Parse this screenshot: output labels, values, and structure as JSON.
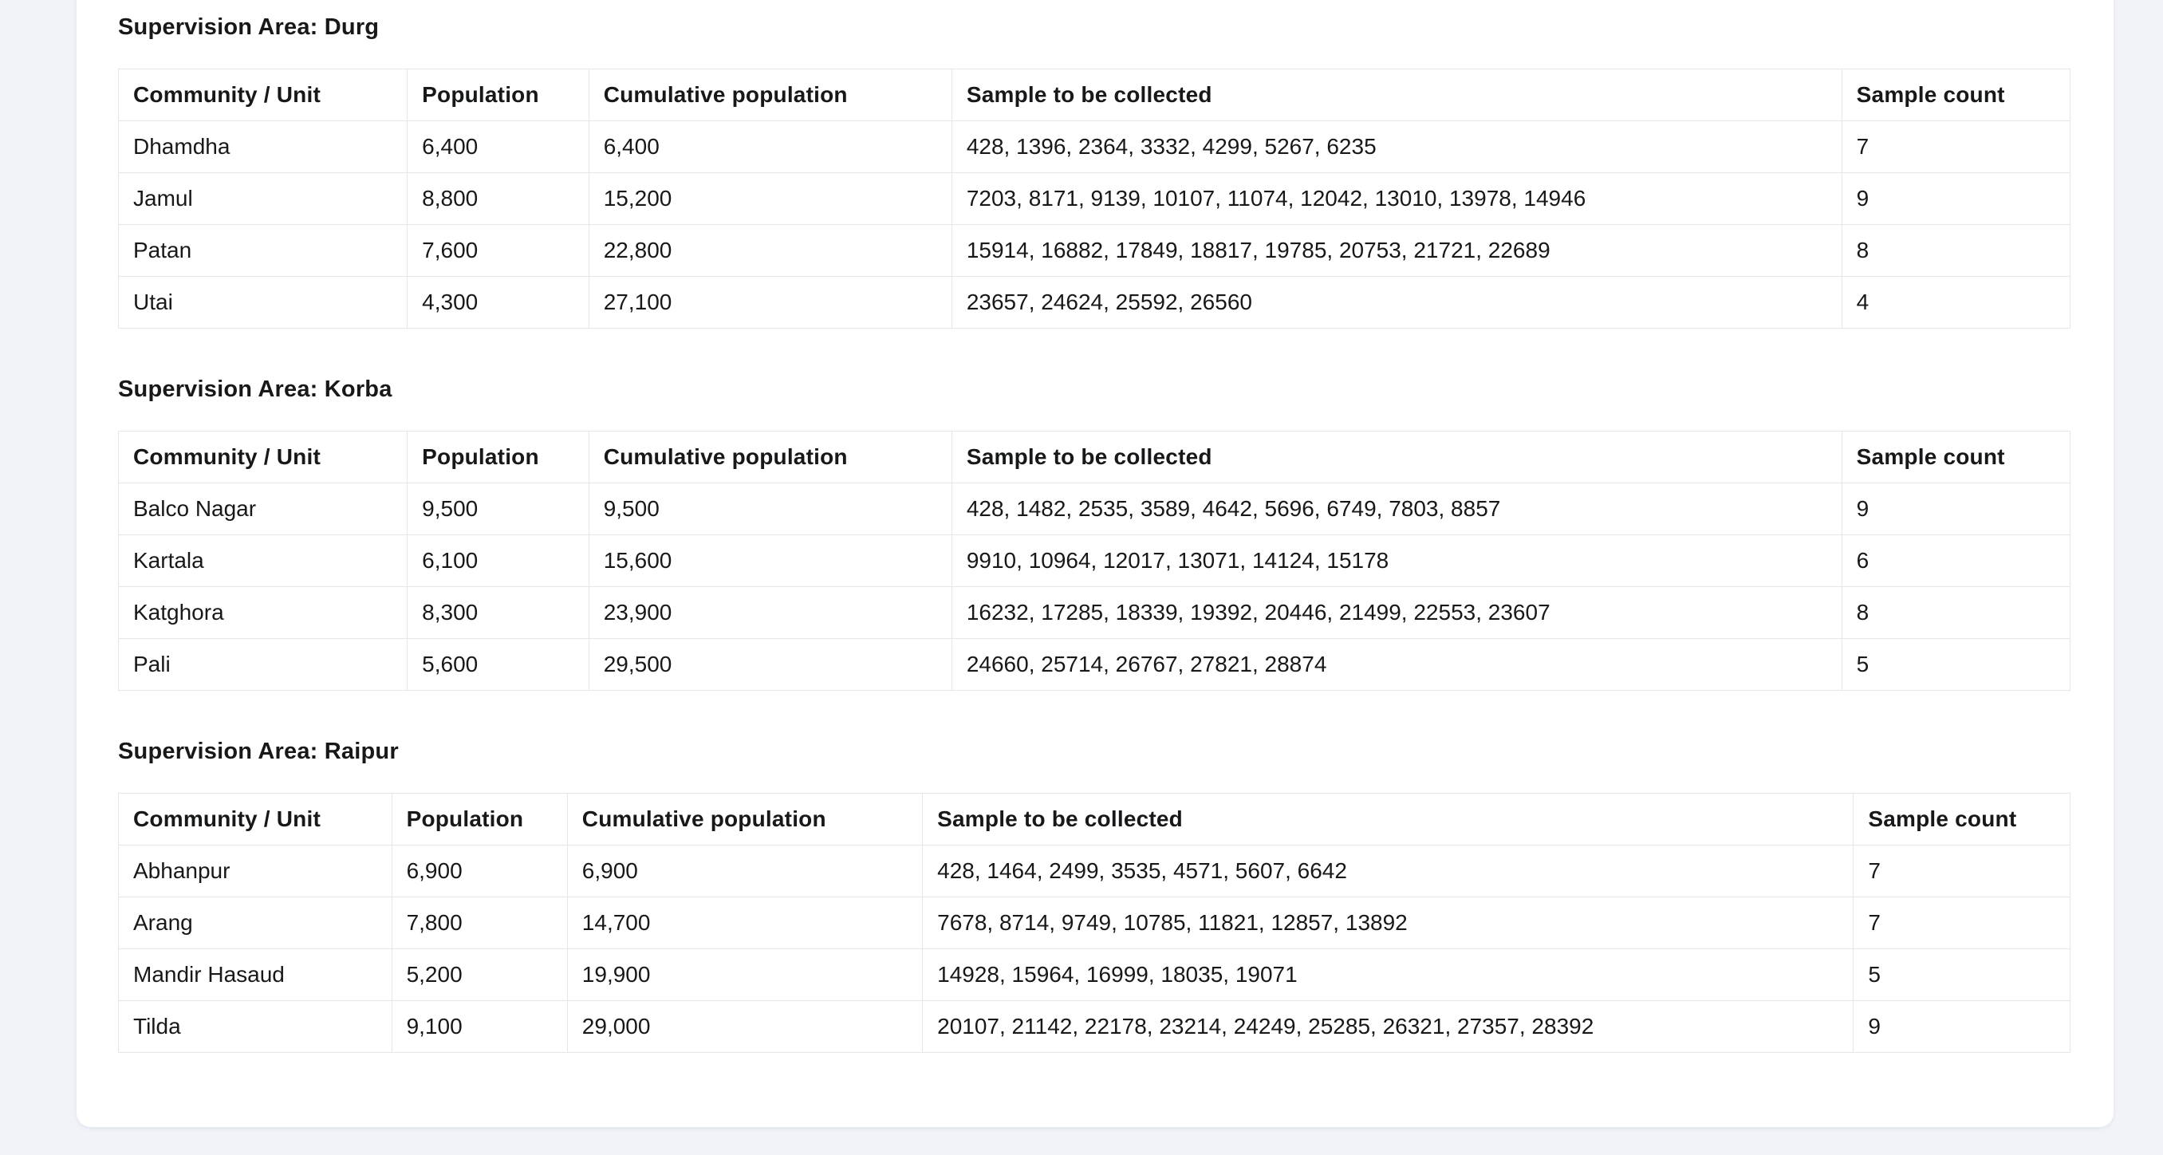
{
  "page": {
    "background_color": "#f1f3f9",
    "card_color": "#ffffff",
    "border_color": "#e4e6eb",
    "text_color": "#17181a"
  },
  "columns": [
    "Community / Unit",
    "Population",
    "Cumulative population",
    "Sample to be collected",
    "Sample count"
  ],
  "sections": [
    {
      "title": "Supervision Area: Durg",
      "rows": [
        {
          "community": "Dhamdha",
          "population": "6,400",
          "cumulative": "6,400",
          "samples": "428, 1396, 2364, 3332, 4299, 5267, 6235",
          "count": "7"
        },
        {
          "community": "Jamul",
          "population": "8,800",
          "cumulative": "15,200",
          "samples": "7203, 8171, 9139, 10107, 11074, 12042, 13010, 13978, 14946",
          "count": "9"
        },
        {
          "community": "Patan",
          "population": "7,600",
          "cumulative": "22,800",
          "samples": "15914, 16882, 17849, 18817, 19785, 20753, 21721, 22689",
          "count": "8"
        },
        {
          "community": "Utai",
          "population": "4,300",
          "cumulative": "27,100",
          "samples": "23657, 24624, 25592, 26560",
          "count": "4"
        }
      ]
    },
    {
      "title": "Supervision Area: Korba",
      "rows": [
        {
          "community": "Balco Nagar",
          "population": "9,500",
          "cumulative": "9,500",
          "samples": "428, 1482, 2535, 3589, 4642, 5696, 6749, 7803, 8857",
          "count": "9"
        },
        {
          "community": "Kartala",
          "population": "6,100",
          "cumulative": "15,600",
          "samples": "9910, 10964, 12017, 13071, 14124, 15178",
          "count": "6"
        },
        {
          "community": "Katghora",
          "population": "8,300",
          "cumulative": "23,900",
          "samples": "16232, 17285, 18339, 19392, 20446, 21499, 22553, 23607",
          "count": "8"
        },
        {
          "community": "Pali",
          "population": "5,600",
          "cumulative": "29,500",
          "samples": "24660, 25714, 26767, 27821, 28874",
          "count": "5"
        }
      ]
    },
    {
      "title": "Supervision Area: Raipur",
      "rows": [
        {
          "community": "Abhanpur",
          "population": "6,900",
          "cumulative": "6,900",
          "samples": "428, 1464, 2499, 3535, 4571, 5607, 6642",
          "count": "7"
        },
        {
          "community": "Arang",
          "population": "7,800",
          "cumulative": "14,700",
          "samples": "7678, 8714, 9749, 10785, 11821, 12857, 13892",
          "count": "7"
        },
        {
          "community": "Mandir Hasaud",
          "population": "5,200",
          "cumulative": "19,900",
          "samples": "14928, 15964, 16999, 18035, 19071",
          "count": "5"
        },
        {
          "community": "Tilda",
          "population": "9,100",
          "cumulative": "29,000",
          "samples": "20107, 21142, 22178, 23214, 24249, 25285, 26321, 27357, 28392",
          "count": "9"
        }
      ]
    }
  ]
}
